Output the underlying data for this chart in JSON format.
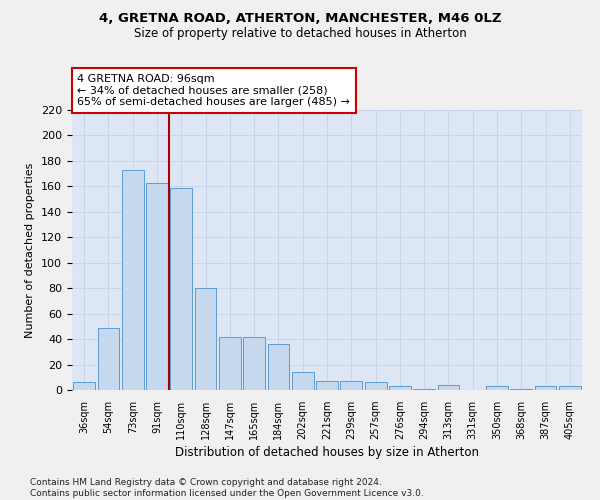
{
  "title1": "4, GRETNA ROAD, ATHERTON, MANCHESTER, M46 0LZ",
  "title2": "Size of property relative to detached houses in Atherton",
  "xlabel": "Distribution of detached houses by size in Atherton",
  "ylabel": "Number of detached properties",
  "categories": [
    "36sqm",
    "54sqm",
    "73sqm",
    "91sqm",
    "110sqm",
    "128sqm",
    "147sqm",
    "165sqm",
    "184sqm",
    "202sqm",
    "221sqm",
    "239sqm",
    "257sqm",
    "276sqm",
    "294sqm",
    "313sqm",
    "331sqm",
    "350sqm",
    "368sqm",
    "387sqm",
    "405sqm"
  ],
  "values": [
    6,
    49,
    173,
    163,
    159,
    80,
    42,
    42,
    36,
    14,
    7,
    7,
    6,
    3,
    1,
    4,
    0,
    3,
    1,
    3,
    3
  ],
  "bar_color": "#c5d8ee",
  "bar_edge_color": "#5b9bd5",
  "vline_color": "#aa0000",
  "annotation_text": "4 GRETNA ROAD: 96sqm\n← 34% of detached houses are smaller (258)\n65% of semi-detached houses are larger (485) →",
  "annotation_box_color": "#ffffff",
  "annotation_box_edge": "#cc0000",
  "ylim": [
    0,
    220
  ],
  "yticks": [
    0,
    20,
    40,
    60,
    80,
    100,
    120,
    140,
    160,
    180,
    200,
    220
  ],
  "grid_color": "#c8d4e8",
  "bg_color": "#dce6f5",
  "footnote": "Contains HM Land Registry data © Crown copyright and database right 2024.\nContains public sector information licensed under the Open Government Licence v3.0."
}
